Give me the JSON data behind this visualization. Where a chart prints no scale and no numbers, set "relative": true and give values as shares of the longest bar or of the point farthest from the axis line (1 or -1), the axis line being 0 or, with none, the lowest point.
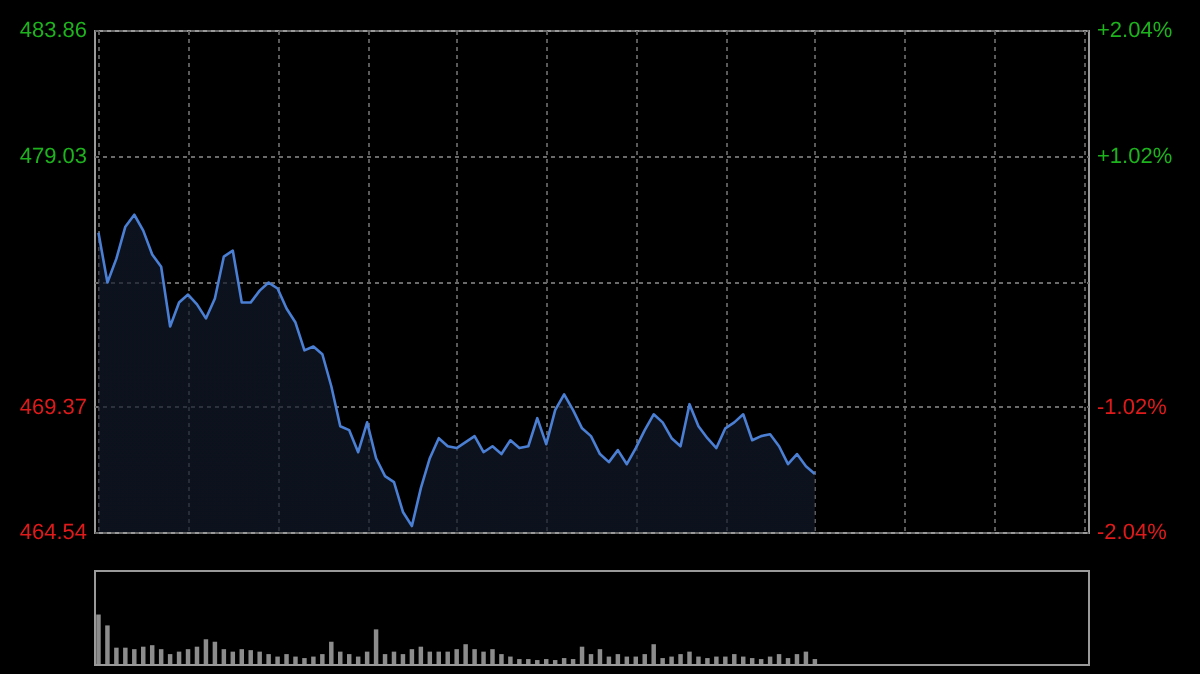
{
  "chart_data": [
    {
      "type": "area",
      "categories": [
        null,
        null,
        null,
        null,
        null,
        null,
        null,
        null,
        null,
        null,
        null,
        null,
        null,
        null,
        null,
        null,
        null,
        null,
        null,
        null,
        null,
        null,
        null,
        null,
        null,
        null,
        null,
        null,
        null,
        null,
        null,
        null,
        null,
        null,
        null,
        null,
        null,
        null,
        null,
        null,
        null,
        null,
        null,
        null,
        null,
        null,
        null,
        null,
        null,
        null,
        null,
        null,
        null,
        null,
        null,
        null,
        null,
        null,
        null,
        null,
        null,
        null,
        null,
        null,
        null,
        null,
        null,
        null,
        null,
        null,
        null,
        null,
        null,
        null,
        null,
        null,
        null,
        null,
        null,
        null,
        null,
        null,
        null,
        null,
        null,
        null,
        null,
        null,
        null,
        null,
        null,
        null,
        null,
        null,
        null,
        null,
        null,
        null,
        null,
        null,
        null,
        null,
        null,
        null,
        null,
        null,
        null,
        null,
        null,
        null,
        null
      ],
      "series": [
        {
          "color": "#4a7fd4",
          "values": [
            476.06,
            474.14,
            475.06,
            476.29,
            476.75,
            476.14,
            475.22,
            474.75,
            472.45,
            473.37,
            473.68,
            473.3,
            472.76,
            473.53,
            475.14,
            475.37,
            473.37,
            473.37,
            473.83,
            474.14,
            473.91,
            473.14,
            472.6,
            471.53,
            471.68,
            471.38,
            470.15,
            468.61,
            468.46,
            467.61,
            468.76,
            467.38,
            466.69,
            466.46,
            465.31,
            464.77,
            466.23,
            467.38,
            468.15,
            467.84,
            467.77,
            468.0,
            468.23,
            467.61,
            467.84,
            467.54,
            468.07,
            467.77,
            467.84,
            468.92,
            467.92,
            469.23,
            469.84,
            469.23,
            468.53,
            468.23,
            467.54,
            467.23,
            467.69,
            467.15,
            467.77,
            468.46,
            469.07,
            468.76,
            468.15,
            467.84,
            469.46,
            468.61,
            468.15,
            467.77,
            468.53,
            468.76,
            469.07,
            468.07,
            468.23,
            468.3,
            467.84,
            467.15,
            467.54,
            467.07,
            466.77,
            null,
            null,
            null,
            null,
            null,
            null,
            null,
            null,
            null,
            null,
            null,
            null,
            null,
            null,
            null,
            null,
            null,
            null,
            null,
            null,
            null,
            null,
            null,
            null,
            null,
            null,
            null,
            null,
            null,
            null
          ]
        }
      ],
      "ylim": [
        464.54,
        483.86
      ],
      "yticks": [
        464.54,
        469.37,
        {
          "value": 474.2,
          "label": null
        },
        479.03,
        483.86
      ],
      "y2lim": [
        -2.04,
        2.04
      ],
      "y2ticks": [
        {
          "value": -2.04,
          "label": "-2.04%"
        },
        {
          "value": -1.02,
          "label": "-1.02%"
        },
        {
          "value": 1.02,
          "label": "+1.02%"
        },
        {
          "value": 2.04,
          "label": "+2.04%"
        }
      ],
      "grid": true
    },
    {
      "type": "bar",
      "relative": true,
      "color": "#8c8c8c",
      "categories": [
        null,
        null,
        null,
        null,
        null,
        null,
        null,
        null,
        null,
        null,
        null,
        null,
        null,
        null,
        null,
        null,
        null,
        null,
        null,
        null,
        null,
        null,
        null,
        null,
        null,
        null,
        null,
        null,
        null,
        null,
        null,
        null,
        null,
        null,
        null,
        null,
        null,
        null,
        null,
        null,
        null,
        null,
        null,
        null,
        null,
        null,
        null,
        null,
        null,
        null,
        null,
        null,
        null,
        null,
        null,
        null,
        null,
        null,
        null,
        null,
        null,
        null,
        null,
        null,
        null,
        null,
        null,
        null,
        null,
        null,
        null,
        null,
        null,
        null,
        null,
        null,
        null,
        null,
        null,
        null,
        null,
        null,
        null,
        null,
        null,
        null,
        null,
        null,
        null,
        null,
        null,
        null,
        null,
        null,
        null,
        null,
        null,
        null,
        null,
        null,
        null,
        null,
        null,
        null,
        null,
        null,
        null,
        null,
        null,
        null,
        null
      ],
      "values": [
        1.0,
        0.78,
        0.33,
        0.33,
        0.3,
        0.35,
        0.38,
        0.3,
        0.2,
        0.25,
        0.3,
        0.35,
        0.5,
        0.45,
        0.3,
        0.25,
        0.3,
        0.28,
        0.25,
        0.2,
        0.15,
        0.2,
        0.15,
        0.12,
        0.15,
        0.2,
        0.45,
        0.25,
        0.2,
        0.15,
        0.25,
        0.7,
        0.2,
        0.25,
        0.2,
        0.3,
        0.35,
        0.25,
        0.25,
        0.25,
        0.3,
        0.4,
        0.3,
        0.25,
        0.3,
        0.2,
        0.15,
        0.1,
        0.1,
        0.08,
        0.1,
        0.08,
        0.12,
        0.1,
        0.35,
        0.2,
        0.3,
        0.15,
        0.2,
        0.15,
        0.15,
        0.2,
        0.4,
        0.12,
        0.15,
        0.2,
        0.25,
        0.15,
        0.12,
        0.15,
        0.15,
        0.2,
        0.15,
        0.12,
        0.1,
        0.15,
        0.2,
        0.12,
        0.2,
        0.25,
        0.1,
        null,
        null,
        null,
        null,
        null,
        null,
        null,
        null,
        null,
        null,
        null,
        null,
        null,
        null,
        null,
        null,
        null,
        null,
        null,
        null,
        null,
        null,
        null,
        null,
        null,
        null,
        null,
        null,
        null,
        null
      ]
    }
  ]
}
